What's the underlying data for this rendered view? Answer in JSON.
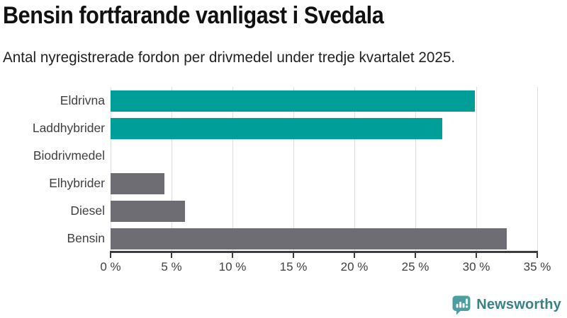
{
  "header": {
    "title": "Bensin fortfarande vanligast i Svedala",
    "subtitle": "Antal nyregistrerade fordon per drivmedel under tredje kvartalet 2025."
  },
  "chart_data": {
    "type": "bar",
    "orientation": "horizontal",
    "title": "Bensin fortfarande vanligast i Svedala",
    "subtitle": "Antal nyregistrerade fordon per drivmedel under tredje kvartalet 2025.",
    "categories": [
      "Eldrivna",
      "Laddhybrider",
      "Biodrivmedel",
      "Elhybrider",
      "Diesel",
      "Bensin"
    ],
    "values": [
      29.9,
      27.2,
      0,
      4.4,
      6.1,
      32.5
    ],
    "unit": "%",
    "bar_colors": [
      "#009E98",
      "#009E98",
      "#6E6D73",
      "#6E6D73",
      "#6E6D73",
      "#6E6D73"
    ],
    "xlabel": "",
    "ylabel": "",
    "xlim": [
      0,
      35
    ],
    "x_ticks": [
      0,
      5,
      10,
      15,
      20,
      25,
      30,
      35
    ],
    "x_tick_labels": [
      "0 %",
      "5 %",
      "10 %",
      "15 %",
      "20 %",
      "25 %",
      "30 %",
      "35 %"
    ],
    "grid": "vertical-only",
    "legend": "none"
  },
  "footer": {
    "brand": "Newsworthy"
  },
  "colors": {
    "accent_teal": "#009E98",
    "neutral_gray": "#6E6D73",
    "gridline": "#DEDEDE",
    "axis": "#3C3C3C",
    "text_dark": "#111111",
    "text_body": "#212121",
    "text_axis": "#3F3F3F",
    "logo_icon": "#4C9FA1",
    "logo_text": "#3A8185"
  }
}
